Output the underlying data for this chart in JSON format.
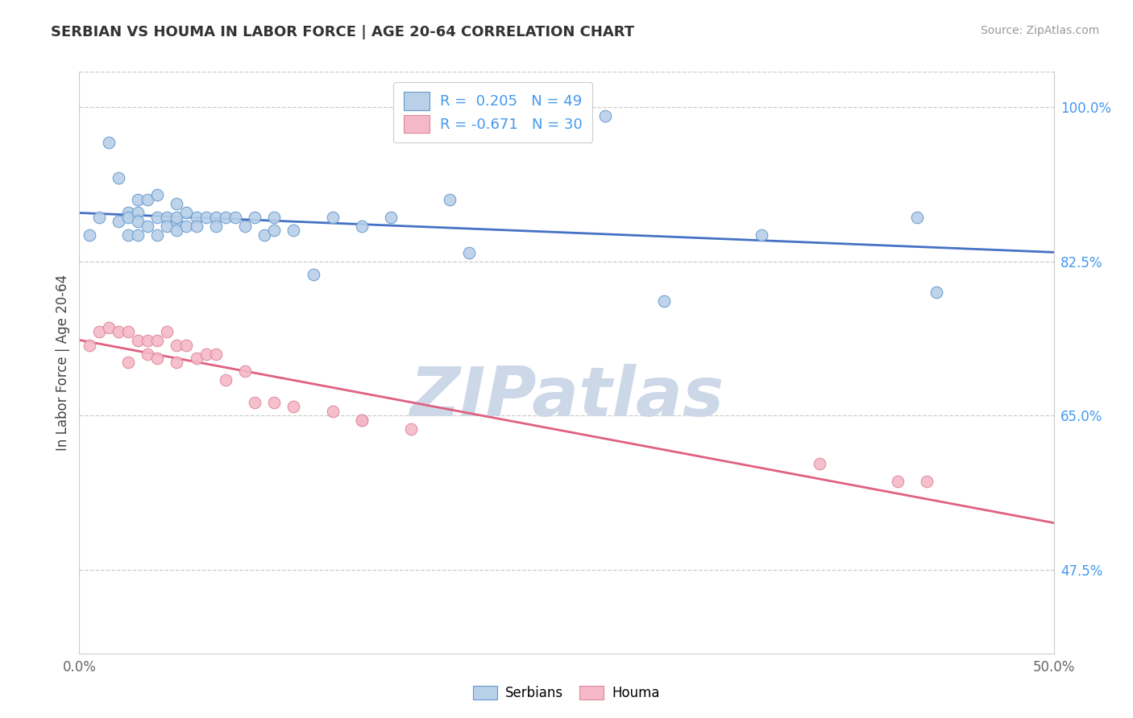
{
  "title": "SERBIAN VS HOUMA IN LABOR FORCE | AGE 20-64 CORRELATION CHART",
  "source_text": "Source: ZipAtlas.com",
  "ylabel": "In Labor Force | Age 20-64",
  "xlim": [
    0.0,
    0.5
  ],
  "ylim": [
    0.38,
    1.04
  ],
  "xticks": [
    0.0,
    0.1,
    0.2,
    0.3,
    0.4,
    0.5
  ],
  "xticklabels": [
    "0.0%",
    "",
    "",
    "",
    "",
    "50.0%"
  ],
  "yticks_right": [
    0.475,
    0.65,
    0.825,
    1.0
  ],
  "yticklabels_right": [
    "47.5%",
    "65.0%",
    "82.5%",
    "100.0%"
  ],
  "R_serbian": 0.205,
  "N_serbian": 49,
  "R_houma": -0.671,
  "N_houma": 30,
  "color_serbian_fill": "#b8d0e8",
  "color_serbian_edge": "#6699cc",
  "color_houma_fill": "#f5b8c8",
  "color_houma_edge": "#dd8899",
  "color_serbian_line": "#4472c4",
  "color_houma_line": "#e06080",
  "watermark_text": "ZIPatlas",
  "watermark_color": "#ccd8e8",
  "serbian_x": [
    0.005,
    0.01,
    0.015,
    0.02,
    0.02,
    0.025,
    0.025,
    0.025,
    0.03,
    0.03,
    0.03,
    0.03,
    0.035,
    0.035,
    0.04,
    0.04,
    0.04,
    0.045,
    0.045,
    0.05,
    0.05,
    0.05,
    0.05,
    0.055,
    0.055,
    0.06,
    0.06,
    0.065,
    0.07,
    0.07,
    0.075,
    0.08,
    0.085,
    0.09,
    0.095,
    0.1,
    0.1,
    0.11,
    0.12,
    0.13,
    0.145,
    0.16,
    0.19,
    0.2,
    0.27,
    0.3,
    0.35,
    0.43,
    0.44
  ],
  "serbian_y": [
    0.855,
    0.875,
    0.96,
    0.87,
    0.92,
    0.88,
    0.875,
    0.855,
    0.88,
    0.895,
    0.87,
    0.855,
    0.865,
    0.895,
    0.875,
    0.9,
    0.855,
    0.875,
    0.865,
    0.87,
    0.89,
    0.875,
    0.86,
    0.88,
    0.865,
    0.875,
    0.865,
    0.875,
    0.875,
    0.865,
    0.875,
    0.875,
    0.865,
    0.875,
    0.855,
    0.86,
    0.875,
    0.86,
    0.81,
    0.875,
    0.865,
    0.875,
    0.895,
    0.835,
    0.99,
    0.78,
    0.855,
    0.875,
    0.79
  ],
  "houma_x": [
    0.005,
    0.01,
    0.015,
    0.02,
    0.025,
    0.025,
    0.03,
    0.035,
    0.035,
    0.04,
    0.04,
    0.045,
    0.05,
    0.05,
    0.055,
    0.06,
    0.065,
    0.07,
    0.075,
    0.085,
    0.09,
    0.1,
    0.11,
    0.13,
    0.145,
    0.145,
    0.17,
    0.38,
    0.42,
    0.435
  ],
  "houma_y": [
    0.73,
    0.745,
    0.75,
    0.745,
    0.745,
    0.71,
    0.735,
    0.735,
    0.72,
    0.735,
    0.715,
    0.745,
    0.73,
    0.71,
    0.73,
    0.715,
    0.72,
    0.72,
    0.69,
    0.7,
    0.665,
    0.665,
    0.66,
    0.655,
    0.645,
    0.645,
    0.635,
    0.595,
    0.575,
    0.575
  ]
}
